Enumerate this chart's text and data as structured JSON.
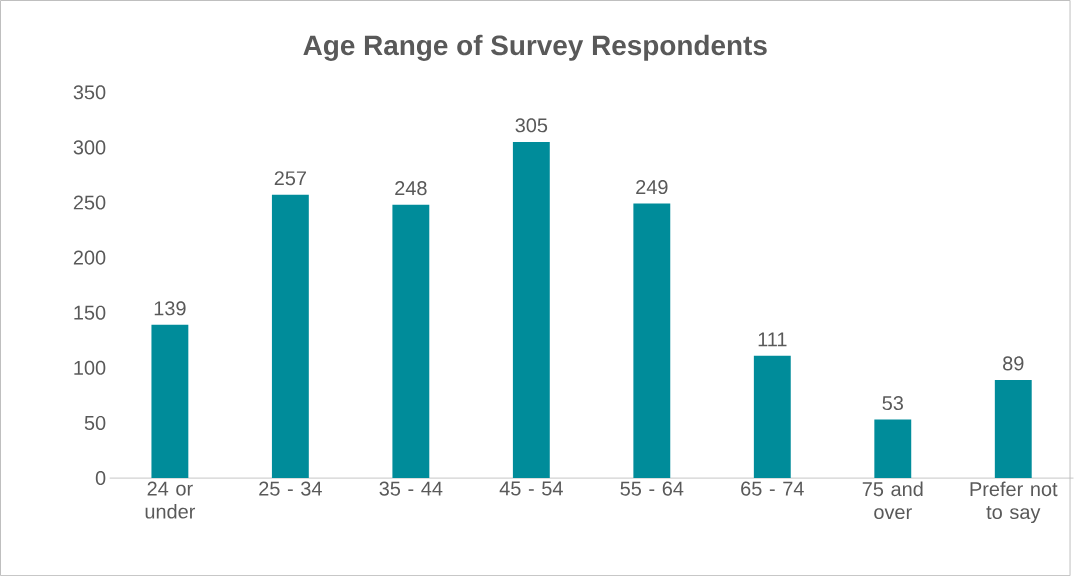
{
  "chart_data": {
    "type": "bar",
    "title": "Age Range of Survey Respondents",
    "categories": [
      "24 or under",
      "25 - 34",
      "35 - 44",
      "45 - 54",
      "55 - 64",
      "65 - 74",
      "75 and over",
      "Prefer not to say"
    ],
    "values": [
      139,
      257,
      248,
      305,
      249,
      111,
      53,
      89
    ],
    "color": "#008c9a",
    "ylim": [
      0,
      350
    ],
    "yticks": [
      0,
      50,
      100,
      150,
      200,
      250,
      300,
      350
    ],
    "data_labels": true
  }
}
